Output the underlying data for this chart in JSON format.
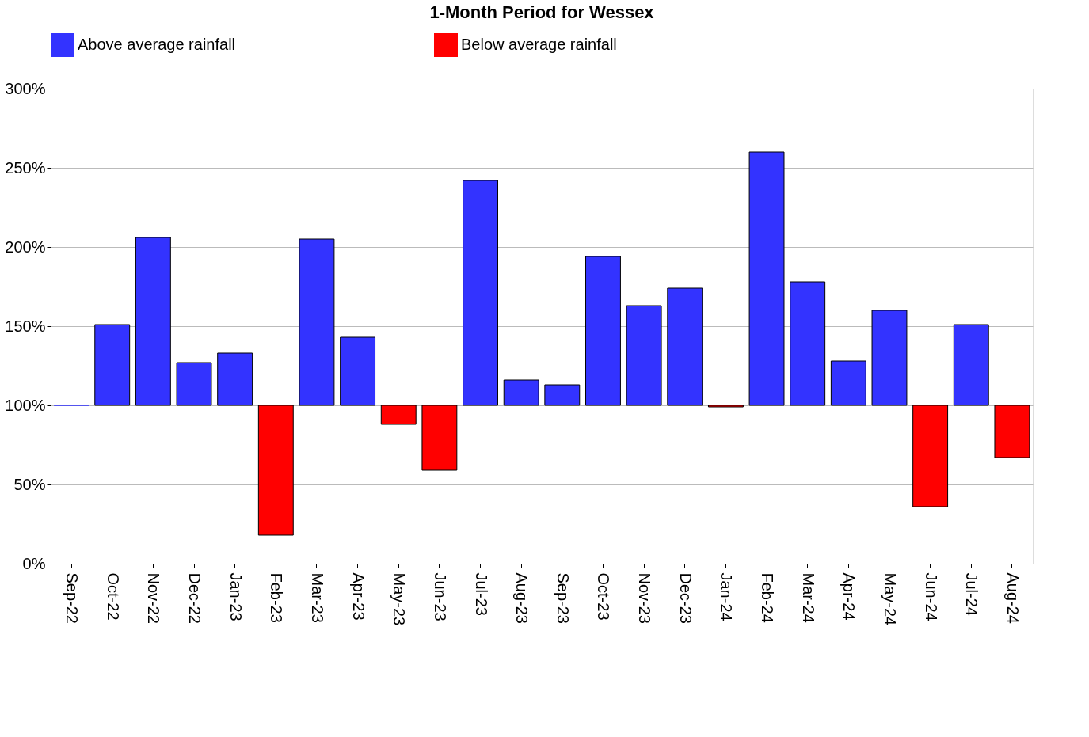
{
  "chart_data": {
    "type": "bar",
    "title": "1-Month Period for Wessex",
    "categories": [
      "Sep-22",
      "Oct-22",
      "Nov-22",
      "Dec-22",
      "Jan-23",
      "Feb-23",
      "Mar-23",
      "Apr-23",
      "May-23",
      "Jun-23",
      "Jul-23",
      "Aug-23",
      "Sep-23",
      "Oct-23",
      "Nov-23",
      "Dec-23",
      "Jan-24",
      "Feb-24",
      "Mar-24",
      "Apr-24",
      "May-24",
      "Jun-24",
      "Jul-24",
      "Aug-24"
    ],
    "series": [
      {
        "name": "Above average rainfall",
        "color": "#3333ff",
        "base": [
          100,
          100,
          100,
          100,
          100,
          null,
          100,
          100,
          null,
          null,
          100,
          100,
          100,
          100,
          100,
          100,
          null,
          100,
          100,
          100,
          100,
          null,
          100,
          null
        ],
        "values": [
          0,
          51,
          106,
          27,
          33,
          null,
          105,
          43,
          null,
          null,
          142,
          16,
          13,
          94,
          63,
          74,
          null,
          160,
          78,
          28,
          60,
          null,
          51,
          null
        ]
      },
      {
        "name": "Below average rainfall",
        "color": "#ff0000",
        "base": [
          null,
          null,
          null,
          null,
          null,
          100,
          null,
          null,
          100,
          100,
          null,
          null,
          null,
          null,
          null,
          null,
          100,
          null,
          null,
          null,
          null,
          100,
          null,
          100
        ],
        "values": [
          null,
          null,
          null,
          null,
          null,
          -82,
          null,
          null,
          -12,
          -41,
          null,
          null,
          null,
          null,
          null,
          null,
          -1,
          null,
          null,
          null,
          null,
          -64,
          null,
          -33
        ]
      }
    ],
    "ylim": [
      0,
      300
    ],
    "yticks": [
      {
        "value": 0,
        "label": "0%"
      },
      {
        "value": 50,
        "label": "50%"
      },
      {
        "value": 100,
        "label": "100%"
      },
      {
        "value": 150,
        "label": "150%"
      },
      {
        "value": 200,
        "label": "200%"
      },
      {
        "value": 250,
        "label": "250%"
      },
      {
        "value": 300,
        "label": "300%"
      }
    ],
    "grid": "y",
    "legend": "top"
  }
}
